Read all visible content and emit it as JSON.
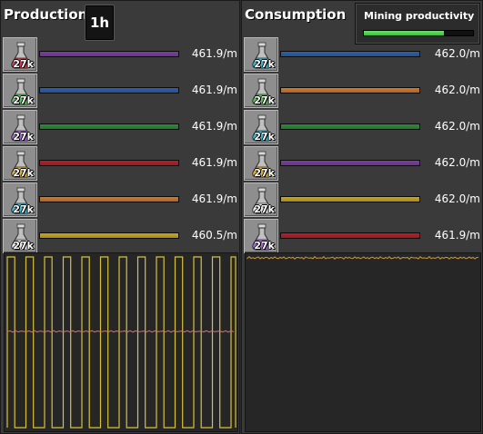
{
  "production": {
    "title": "Production",
    "time_label": "1h",
    "items": [
      {
        "count": "27k",
        "flask_color": "#d23b4e",
        "bar_color": "#7a3fa0",
        "rate": "461.9/m",
        "icon": "automation-science-pack-icon"
      },
      {
        "count": "27k",
        "flask_color": "#5ec35e",
        "bar_color": "#2d5fa8",
        "rate": "461.9/m",
        "icon": "logistic-science-pack-icon"
      },
      {
        "count": "27k",
        "flask_color": "#a06ad0",
        "bar_color": "#2f8a3a",
        "rate": "461.9/m",
        "icon": "production-science-pack-icon"
      },
      {
        "count": "27k",
        "flask_color": "#e0b040",
        "bar_color": "#b3202a",
        "rate": "461.9/m",
        "icon": "utility-science-pack-icon"
      },
      {
        "count": "27k",
        "flask_color": "#40b8d8",
        "bar_color": "#d07a2a",
        "rate": "461.9/m",
        "icon": "military-science-pack-icon"
      },
      {
        "count": "27k",
        "flask_color": "#e8e8e8",
        "bar_color": "#c9a81c",
        "rate": "460.5/m",
        "icon": "space-science-pack-icon"
      }
    ]
  },
  "consumption": {
    "title": "Consumption",
    "items": [
      {
        "count": "27k",
        "flask_color": "#40b8d8",
        "bar_color": "#2d5fa8",
        "rate": "462.0/m",
        "icon": "military-science-pack-icon"
      },
      {
        "count": "27k",
        "flask_color": "#5ec35e",
        "bar_color": "#d07a2a",
        "rate": "462.0/m",
        "icon": "logistic-science-pack-icon"
      },
      {
        "count": "27k",
        "flask_color": "#40b8d8",
        "bar_color": "#2f8a3a",
        "rate": "462.0/m",
        "icon": "chemical-science-pack-icon"
      },
      {
        "count": "27k",
        "flask_color": "#e0b040",
        "bar_color": "#7a3fa0",
        "rate": "462.0/m",
        "icon": "utility-science-pack-icon"
      },
      {
        "count": "27k",
        "flask_color": "#e8e8e8",
        "bar_color": "#c9a81c",
        "rate": "462.0/m",
        "icon": "space-science-pack-icon"
      },
      {
        "count": "27k",
        "flask_color": "#a06ad0",
        "bar_color": "#b3202a",
        "rate": "461.9/m",
        "icon": "production-science-pack-icon"
      }
    ]
  },
  "mining_productivity": {
    "label": "Mining productivity",
    "progress": 0.73,
    "fill_color": "#3fbf3f"
  },
  "graph_colors": {
    "production_square_wave": "#d7c23a",
    "production_midline": "#c77a7a",
    "consumption_line": "#d09a3a"
  }
}
